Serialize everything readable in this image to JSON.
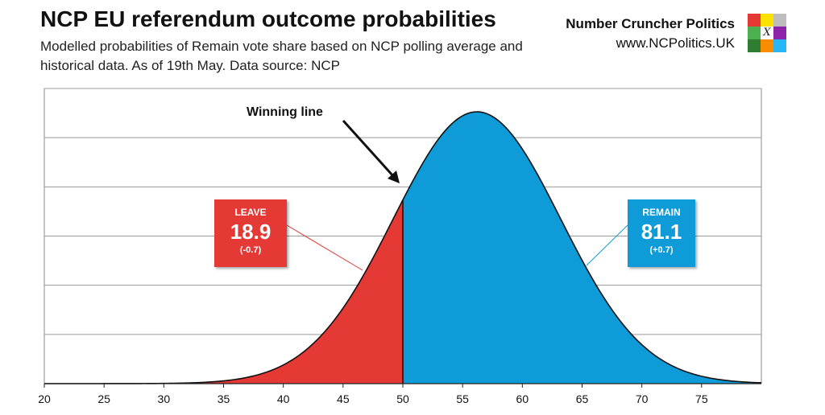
{
  "header": {
    "title": "NCP EU referendum outcome probabilities",
    "subtitle": "Modelled probabilities of Remain vote share based on NCP polling average and historical data. As of 19th May. Data source: NCP",
    "brand_name": "Number Cruncher Politics",
    "brand_url": "www.NCPolitics.UK",
    "logo_colors": [
      "#e53935",
      "#fbe200",
      "#bdbdbd",
      "#4caf50",
      "#ffffff",
      "#8e24aa",
      "#2e7d32",
      "#fb8c00",
      "#29b6f6"
    ],
    "logo_mark": "X"
  },
  "chart_data": {
    "type": "area",
    "title": "NCP EU referendum outcome probabilities",
    "x_ticks": [
      "20",
      "25",
      "30",
      "35",
      "40",
      "45",
      "50",
      "55",
      "60",
      "65",
      "70",
      "75"
    ],
    "xlim": [
      20,
      80
    ],
    "distribution": {
      "kind": "normal",
      "mean": 56.2,
      "sd": 7.0
    },
    "threshold": 50,
    "grid": true,
    "series": [
      {
        "name": "LEAVE",
        "value": "18.9",
        "change": "(-0.7)",
        "range": [
          20,
          50
        ],
        "color": "#e53935"
      },
      {
        "name": "REMAIN",
        "value": "81.1",
        "change": "(+0.7)",
        "range": [
          50,
          80
        ],
        "color": "#0f9bd7"
      }
    ],
    "annotation": "Winning line"
  }
}
